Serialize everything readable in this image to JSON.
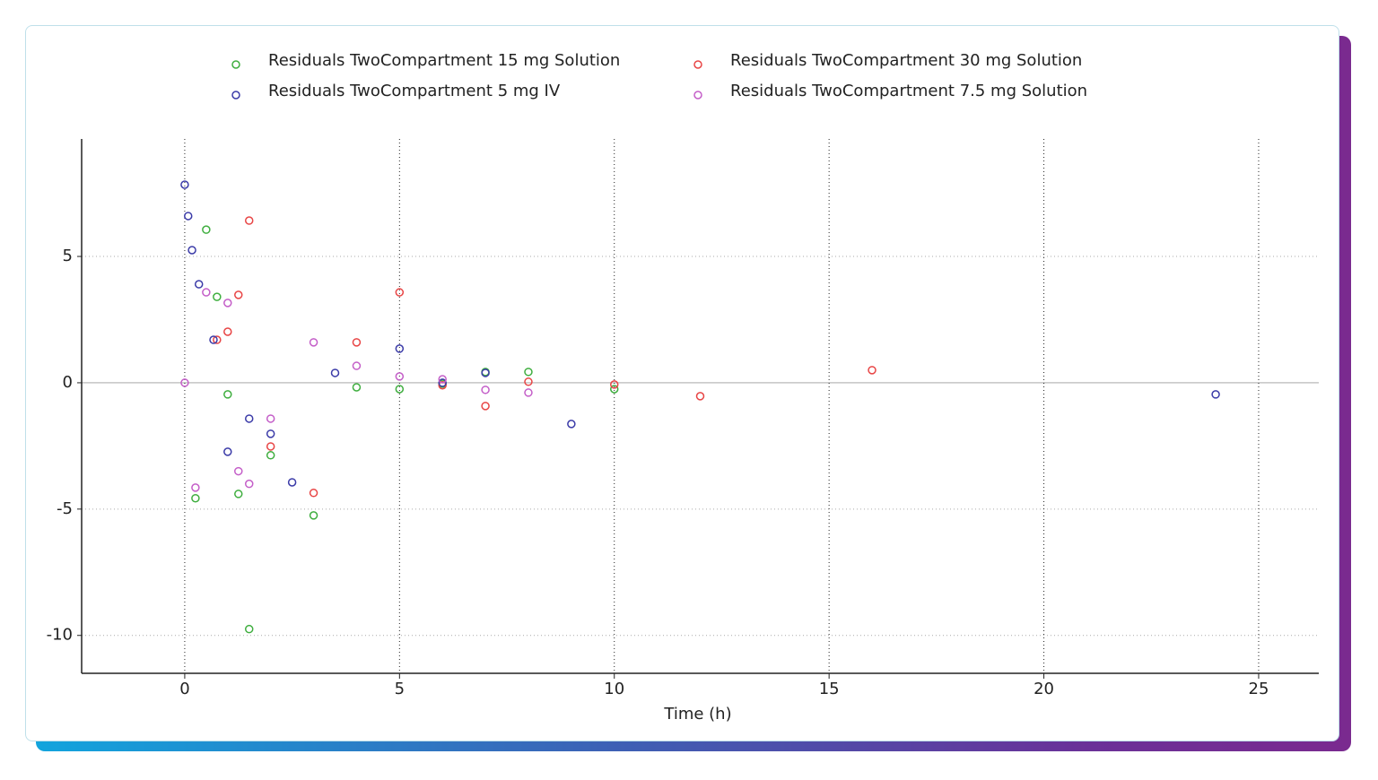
{
  "chart_data": {
    "type": "scatter",
    "x_label": "Time (h)",
    "xlim": [
      -2.4,
      26.4
    ],
    "xticks": [
      0,
      5,
      10,
      15,
      20,
      25
    ],
    "ylim": [
      -11.5,
      9.65
    ],
    "yticks": [
      -10,
      -5,
      0,
      5
    ],
    "grid": true,
    "series": [
      {
        "name": "Residuals TwoCompartment 15 mg Solution",
        "color": "#3fae3f",
        "x": [
          0.5,
          0.75,
          1,
          0.25,
          1.25,
          2,
          1.5,
          3,
          4,
          5,
          6,
          7,
          8,
          10
        ],
        "values": [
          6.06,
          3.4,
          -0.46,
          -4.57,
          -4.4,
          -2.87,
          -9.75,
          -5.25,
          -0.18,
          -0.25,
          -0.04,
          0.43,
          0.43,
          -0.25
        ]
      },
      {
        "name": "Residuals TwoCompartment 30 mg Solution",
        "color": "#e84545",
        "x": [
          1.5,
          1.25,
          1,
          0.75,
          2,
          3,
          4,
          5,
          6,
          7,
          8,
          10,
          12,
          16
        ],
        "values": [
          6.42,
          3.48,
          2.02,
          1.7,
          -2.52,
          -4.36,
          1.6,
          3.58,
          -0.1,
          -0.92,
          0.04,
          -0.07,
          -0.53,
          0.5
        ]
      },
      {
        "name": "Residuals TwoCompartment 5 mg IV",
        "color": "#3b3ba8",
        "x": [
          0,
          0.08,
          0.17,
          0.33,
          0.67,
          1,
          1.5,
          2,
          2.5,
          3.5,
          5,
          6,
          7,
          9,
          24
        ],
        "values": [
          7.84,
          6.6,
          5.25,
          3.9,
          1.7,
          -2.73,
          -1.42,
          -2.02,
          -3.94,
          0.39,
          1.35,
          0,
          0.39,
          -1.63,
          -0.46
        ]
      },
      {
        "name": "Residuals TwoCompartment 7.5 mg Solution",
        "color": "#c45ec8",
        "x": [
          0,
          0.25,
          0.5,
          1,
          1.25,
          1.5,
          2,
          3,
          4,
          5,
          6,
          7,
          8
        ],
        "values": [
          0,
          -4.15,
          3.58,
          3.16,
          -3.5,
          -4.0,
          -1.42,
          1.6,
          0.67,
          0.25,
          0.14,
          -0.28,
          -0.39
        ]
      }
    ]
  }
}
